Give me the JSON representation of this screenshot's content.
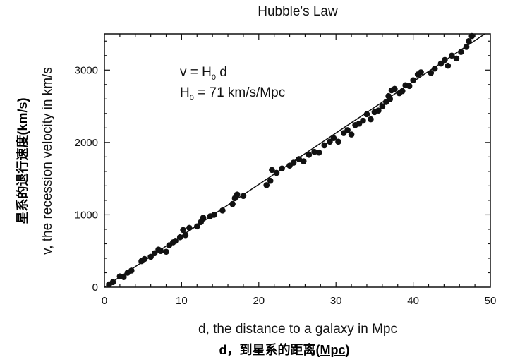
{
  "chart_data": {
    "type": "scatter",
    "title": "Hubble's Law",
    "xlabel": "d, the distance to a galaxy in Mpc",
    "xlabel_cn": "d，到星系的距离(Mpc)",
    "ylabel": "v, the recession velocity in km/s",
    "ylabel_cn": "星系的退行速度(km/s)",
    "xlim": [
      0,
      50
    ],
    "ylim": [
      0,
      3500
    ],
    "x_ticks": [
      0,
      10,
      20,
      30,
      40,
      50
    ],
    "y_ticks": [
      0,
      1000,
      2000,
      3000
    ],
    "x_tick_labels": [
      "0",
      "10",
      "20",
      "30",
      "40",
      "50"
    ],
    "y_tick_labels": [
      "0",
      "1000",
      "2000",
      "3000"
    ],
    "grid": false,
    "annotation": {
      "line1_pre": "v = H",
      "line1_sub": "0",
      "line1_post": " d",
      "line2_pre": "H",
      "line2_sub": "0",
      "line2_post": " = 71 km/s/Mpc"
    },
    "fit_line": {
      "slope": 71,
      "intercept": 0,
      "x_range": [
        0,
        50
      ]
    },
    "points": [
      [
        0.6,
        40
      ],
      [
        1.1,
        70
      ],
      [
        2.0,
        150
      ],
      [
        2.5,
        140
      ],
      [
        3.0,
        200
      ],
      [
        3.5,
        230
      ],
      [
        4.8,
        360
      ],
      [
        5.2,
        390
      ],
      [
        6.0,
        420
      ],
      [
        6.5,
        470
      ],
      [
        7.0,
        520
      ],
      [
        7.3,
        500
      ],
      [
        8.0,
        490
      ],
      [
        8.4,
        580
      ],
      [
        8.9,
        620
      ],
      [
        9.2,
        640
      ],
      [
        9.8,
        690
      ],
      [
        10.5,
        720
      ],
      [
        10.2,
        790
      ],
      [
        11.0,
        820
      ],
      [
        12.0,
        840
      ],
      [
        12.5,
        900
      ],
      [
        12.8,
        960
      ],
      [
        13.7,
        980
      ],
      [
        14.2,
        1000
      ],
      [
        15.3,
        1060
      ],
      [
        16.6,
        1150
      ],
      [
        16.9,
        1230
      ],
      [
        17.2,
        1280
      ],
      [
        18.0,
        1260
      ],
      [
        21.0,
        1410
      ],
      [
        21.5,
        1470
      ],
      [
        21.7,
        1620
      ],
      [
        22.3,
        1580
      ],
      [
        23.0,
        1640
      ],
      [
        24.0,
        1680
      ],
      [
        24.5,
        1720
      ],
      [
        25.2,
        1770
      ],
      [
        25.8,
        1740
      ],
      [
        26.5,
        1830
      ],
      [
        27.2,
        1870
      ],
      [
        27.8,
        1860
      ],
      [
        28.5,
        1960
      ],
      [
        29.2,
        2010
      ],
      [
        29.7,
        2060
      ],
      [
        30.3,
        2010
      ],
      [
        31.0,
        2130
      ],
      [
        31.5,
        2170
      ],
      [
        32.0,
        2110
      ],
      [
        32.5,
        2240
      ],
      [
        33.0,
        2260
      ],
      [
        33.5,
        2300
      ],
      [
        34.0,
        2390
      ],
      [
        34.5,
        2320
      ],
      [
        35.0,
        2420
      ],
      [
        35.5,
        2440
      ],
      [
        36.0,
        2500
      ],
      [
        36.5,
        2560
      ],
      [
        36.8,
        2640
      ],
      [
        37.0,
        2600
      ],
      [
        37.2,
        2720
      ],
      [
        37.6,
        2740
      ],
      [
        38.2,
        2680
      ],
      [
        38.6,
        2710
      ],
      [
        39.0,
        2790
      ],
      [
        39.5,
        2780
      ],
      [
        40.0,
        2860
      ],
      [
        40.6,
        2940
      ],
      [
        41.0,
        2970
      ],
      [
        42.3,
        2960
      ],
      [
        42.8,
        3020
      ],
      [
        43.6,
        3090
      ],
      [
        44.1,
        3140
      ],
      [
        44.5,
        3060
      ],
      [
        45.0,
        3200
      ],
      [
        45.6,
        3160
      ],
      [
        46.2,
        3250
      ],
      [
        46.9,
        3320
      ],
      [
        47.2,
        3400
      ],
      [
        47.6,
        3470
      ]
    ]
  }
}
